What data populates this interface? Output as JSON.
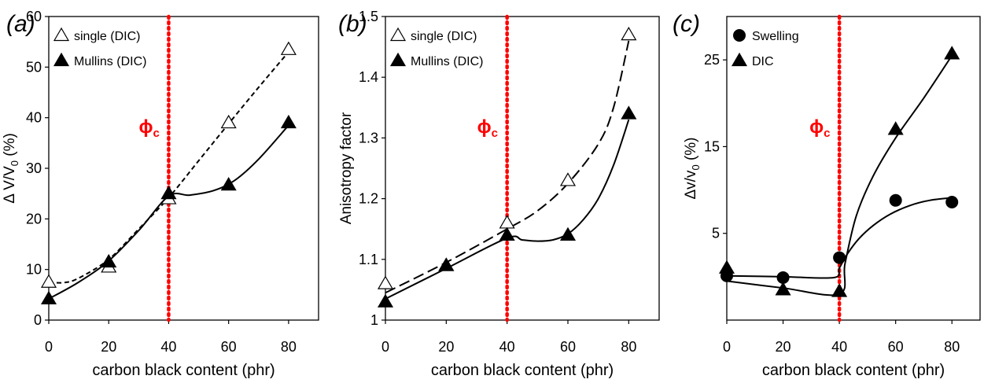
{
  "chart_data": [
    {
      "panel_label": "(a)",
      "type": "scatter",
      "xlabel": "carbon black content (phr)",
      "ylabel": "Δ V/V",
      "ylabel_sub": "0",
      "ylabel_suffix": " (%)",
      "xlim": [
        0,
        90
      ],
      "ylim": [
        0,
        60
      ],
      "xticks": [
        0,
        20,
        40,
        60,
        80
      ],
      "yticks": [
        0,
        10,
        20,
        30,
        40,
        50,
        60
      ],
      "ytick_labels": [
        "0",
        "10",
        "20",
        "30",
        "40",
        "50",
        "60"
      ],
      "legend_position": "top-left",
      "critical_line": {
        "x": 40,
        "label": "ϕ",
        "label_sub": "c",
        "color": "#ff0000"
      },
      "series": [
        {
          "name": "single (DIC)",
          "marker": "open-triangle",
          "x": [
            0,
            20,
            40,
            60,
            80
          ],
          "y": [
            7.5,
            10.5,
            24,
            39,
            53.5
          ],
          "fit": {
            "style": "dashed",
            "x": [
              0,
              5,
              10,
              20,
              30,
              40,
              50,
              60,
              70,
              80
            ],
            "y": [
              7.5,
              7.4,
              8.3,
              12,
              18,
              24.2,
              31.5,
              38.8,
              46,
              53
            ]
          }
        },
        {
          "name": "Mullins (DIC)",
          "marker": "filled-triangle",
          "x": [
            0,
            20,
            40,
            60,
            80
          ],
          "y": [
            4.2,
            11.5,
            25,
            26.7,
            39
          ],
          "fit": {
            "style": "solid",
            "x": [
              0,
              10,
              20,
              30,
              40,
              47,
              55,
              62,
              70,
              80
            ],
            "y": [
              4.2,
              7.5,
              11.7,
              17.7,
              24.5,
              24.7,
              25.6,
              27.6,
              31.8,
              38.5
            ]
          }
        }
      ]
    },
    {
      "panel_label": "(b)",
      "type": "scatter",
      "xlabel": "carbon black content (phr)",
      "ylabel": "Anisotropy factor",
      "xlim": [
        0,
        90
      ],
      "ylim": [
        1,
        1.5
      ],
      "xticks": [
        0,
        20,
        40,
        60,
        80
      ],
      "yticks": [
        1,
        1.1,
        1.2,
        1.3,
        1.4,
        1.5
      ],
      "ytick_labels": [
        "1",
        "1.1",
        "1.2",
        "1.3",
        "1.4",
        "1.5"
      ],
      "legend_position": "top-left",
      "critical_line": {
        "x": 40,
        "label": "ϕ",
        "label_sub": "c",
        "color": "#ff0000"
      },
      "series": [
        {
          "name": "single (DIC)",
          "marker": "open-triangle",
          "x": [
            0,
            20,
            40,
            60,
            80
          ],
          "y": [
            1.06,
            1.09,
            1.16,
            1.23,
            1.47
          ],
          "fit": {
            "style": "long-dashed",
            "x": [
              0,
              20,
              40,
              50,
              60,
              70,
              75,
              80
            ],
            "y": [
              1.045,
              1.095,
              1.15,
              1.18,
              1.225,
              1.29,
              1.35,
              1.46
            ]
          }
        },
        {
          "name": "Mullins (DIC)",
          "marker": "filled-triangle",
          "x": [
            0,
            20,
            40,
            60,
            80
          ],
          "y": [
            1.03,
            1.09,
            1.14,
            1.14,
            1.34
          ],
          "fit": {
            "style": "solid",
            "x": [
              0,
              20,
              40,
              45,
              50,
              55,
              60,
              65,
              70,
              75,
              80
            ],
            "y": [
              1.035,
              1.085,
              1.135,
              1.132,
              1.13,
              1.132,
              1.142,
              1.165,
              1.2,
              1.255,
              1.33
            ]
          }
        }
      ]
    },
    {
      "panel_label": "(c)",
      "type": "scatter",
      "xlabel": "carbon black content (phr)",
      "ylabel": "Δv/v",
      "ylabel_sub": "0",
      "ylabel_suffix": " (%)",
      "xlim": [
        0,
        90
      ],
      "ylim": [
        -5,
        30
      ],
      "xticks": [
        0,
        20,
        40,
        60,
        80
      ],
      "yticks": [
        5,
        15,
        25
      ],
      "ytick_labels": [
        "5",
        "15",
        "25"
      ],
      "legend_position": "top-left",
      "critical_line": {
        "x": 40,
        "label": "ϕ",
        "label_sub": "c",
        "color": "#ff0000"
      },
      "series": [
        {
          "name": "Swelling",
          "marker": "filled-circle",
          "x": [
            0,
            20,
            40,
            60,
            80
          ],
          "y": [
            0.1,
            -0.1,
            2.2,
            8.8,
            8.6
          ],
          "fit": {
            "style": "solid",
            "x": [
              0,
              20,
              38,
              40,
              43,
              47,
              52,
              58,
              65,
              72,
              80
            ],
            "y": [
              0.1,
              0.0,
              -0.1,
              1.0,
              2.7,
              4.4,
              5.9,
              7.2,
              8.2,
              8.8,
              9.1
            ]
          }
        },
        {
          "name": "DIC",
          "marker": "filled-triangle",
          "x": [
            0,
            20,
            40,
            60,
            80
          ],
          "y": [
            1.0,
            -1.5,
            -1.7,
            17.0,
            25.7
          ],
          "fit": {
            "style": "solid",
            "x": [
              0,
              20,
              40,
              42,
              46,
              52,
              60,
              70,
              80
            ],
            "y": [
              -0.5,
              -1.3,
              -2.0,
              1.5,
              7.0,
              11.6,
              16.0,
              20.6,
              25.5
            ]
          }
        }
      ]
    }
  ]
}
